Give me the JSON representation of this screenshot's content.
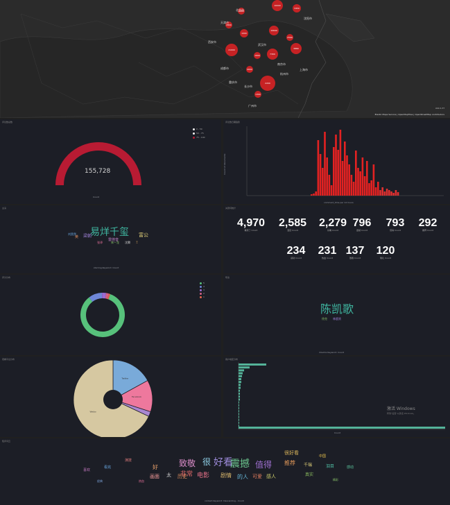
{
  "map": {
    "cities": [
      {
        "label": "10000"
      },
      {
        "label": "3450"
      },
      {
        "label": "2000"
      },
      {
        "label": "2800"
      },
      {
        "label": "1000"
      },
      {
        "label": "10690"
      },
      {
        "label": "21000"
      },
      {
        "label": "7300"
      },
      {
        "label": "2590"
      },
      {
        "label": "3880"
      },
      {
        "label": "1600"
      },
      {
        "label": "4000"
      },
      {
        "label": "2200"
      },
      {
        "label": "1300"
      }
    ],
    "place_labels": [
      "北京市",
      "天津市",
      "沈阳市",
      "西安市",
      "武汉市",
      "南京市",
      "上海市",
      "杭州市",
      "成都市",
      "重庆市",
      "长沙市",
      "广州市"
    ],
    "scale": "mm 1:??",
    "attribution": "Elastic Maps Service | OpenMapTiles | OpenStreetMap contributors"
  },
  "gauge": {
    "title": "评论数总数",
    "value": "155,728",
    "sub": "Count",
    "legend": [
      {
        "label": "0 - 50",
        "color": "#e9e9e9"
      },
      {
        "label": "50 - 75",
        "color": "#f2f2f2"
      },
      {
        "label": "75 - 100",
        "color": "#b81b33"
      }
    ]
  },
  "bars": {
    "title": "评论数日期趋势",
    "xlabel": "comment_time per 12 hours",
    "ylabel": "Count of documents"
  },
  "tagcloud1": {
    "title": "主演",
    "footer": "starring.Keyword: Count",
    "words": [
      {
        "text": "易烊千玺",
        "size": 14,
        "color": "#3fb6a0"
      },
      {
        "text": "雷佳音",
        "size": 5,
        "color": "#d08bd8"
      },
      {
        "text": "富公",
        "size": 7,
        "color": "#e6d47a"
      },
      {
        "text": "梁朝",
        "size": 6,
        "color": "#9f82d9"
      },
      {
        "text": "英",
        "size": 5,
        "color": "#e18f5e"
      },
      {
        "text": "刘昊然",
        "size": 4,
        "color": "#6aa9e4"
      },
      {
        "text": "张译",
        "size": 4,
        "color": "#e6709a"
      },
      {
        "text": "朱一龙",
        "size": 4,
        "color": "#88c068"
      },
      {
        "text": "沈腾",
        "size": 4,
        "color": "#c8c8c8"
      },
      {
        "text": "王",
        "size": 3,
        "color": "#d6a35a"
      }
    ]
  },
  "metrics": {
    "title": "关键词统计",
    "items": [
      {
        "value": "4,970",
        "label": "看哭了 Count"
      },
      {
        "value": "2,585",
        "label": "泪目 Count"
      },
      {
        "value": "2,279",
        "label": "好看 Count"
      },
      {
        "value": "796",
        "label": "震撼 Count"
      },
      {
        "value": "793",
        "label": "值得 Count"
      },
      {
        "value": "292",
        "label": "推荐 Count"
      },
      {
        "value": "234",
        "label": "感动 Count"
      },
      {
        "value": "231",
        "label": "热血 Count"
      },
      {
        "value": "137",
        "label": "致敬 Count"
      },
      {
        "value": "120",
        "label": "敬礼 Count"
      }
    ]
  },
  "donut": {
    "title": "评分分布",
    "legend": [
      {
        "label": "5",
        "color": "#57c17b"
      },
      {
        "label": "4",
        "color": "#6f87d8"
      },
      {
        "label": "3",
        "color": "#9c6bd1"
      },
      {
        "label": "2",
        "color": "#d36086"
      },
      {
        "label": "1",
        "color": "#e7664c"
      }
    ],
    "slices": [
      {
        "value": 84,
        "color": "#57c17b"
      },
      {
        "value": 10,
        "color": "#6f87d8"
      },
      {
        "value": 3,
        "color": "#9c6bd1"
      },
      {
        "value": 2,
        "color": "#d36086"
      },
      {
        "value": 1,
        "color": "#e7664c"
      }
    ]
  },
  "tagcloud2": {
    "title": "导演",
    "footer": "director.Keyword: Count",
    "main": "陈凯歌",
    "small": [
      "徐克",
      "林超贤"
    ]
  },
  "pie": {
    "title": "观看平台分布",
    "slices": [
      {
        "value": 17,
        "color": "#79aad9",
        "label": "Twitter"
      },
      {
        "value": 13,
        "color": "#ee789d",
        "label": "Facebook"
      },
      {
        "value": 2,
        "color": "#a987d1",
        "label": ""
      },
      {
        "value": 68,
        "color": "#d6c8a1",
        "label": "Weibo"
      }
    ]
  },
  "hbars": {
    "title": "用户地区分布",
    "xlabel": "Count",
    "ylabel": "location.Keyword: Descending",
    "watermark": "激活 Windows",
    "watermark_sub": "转到\"设置\"以激活 Windows。"
  },
  "tagcloud3": {
    "title": "短评词云",
    "footer": "content.Keyword: Descending - Count",
    "words": [
      {
        "text": "致敬",
        "size": 12,
        "color": "#d98cc8"
      },
      {
        "text": "很",
        "size": 12,
        "color": "#8fd0e8"
      },
      {
        "text": "好看",
        "size": 14,
        "color": "#9c8ad9"
      },
      {
        "text": "震撼",
        "size": 14,
        "color": "#6bc48d"
      },
      {
        "text": "值得",
        "size": 12,
        "color": "#9e6fd0"
      },
      {
        "text": "推荐",
        "size": 8,
        "color": "#e69b5a"
      },
      {
        "text": "千瑞",
        "size": 6,
        "color": "#e5d57a"
      },
      {
        "text": "电影",
        "size": 9,
        "color": "#e9738a"
      },
      {
        "text": "剧情",
        "size": 8,
        "color": "#d7b56b"
      },
      {
        "text": "的人",
        "size": 8,
        "color": "#66b8d8"
      },
      {
        "text": "可爱",
        "size": 7,
        "color": "#e57e5e"
      },
      {
        "text": "感人",
        "size": 7,
        "color": "#c9c96a"
      },
      {
        "text": "非常",
        "size": 9,
        "color": "#e46a6a"
      },
      {
        "text": "历史",
        "size": 7,
        "color": "#e18f5e"
      },
      {
        "text": "画面",
        "size": 7,
        "color": "#f49a9a"
      },
      {
        "text": "很好看",
        "size": 7,
        "color": "#d8b35a"
      },
      {
        "text": "真实",
        "size": 6,
        "color": "#8bbd5f"
      },
      {
        "text": "泪目",
        "size": 6,
        "color": "#4fc0a5"
      },
      {
        "text": "好",
        "size": 8,
        "color": "#e9a06b"
      },
      {
        "text": "太",
        "size": 7,
        "color": "#d0d0d0"
      },
      {
        "text": "看完",
        "size": 5,
        "color": "#6aa9e4"
      },
      {
        "text": "喜欢",
        "size": 5,
        "color": "#c879c4"
      },
      {
        "text": "演技",
        "size": 5,
        "color": "#e67f7f"
      },
      {
        "text": "中国",
        "size": 5,
        "color": "#e8c34d"
      },
      {
        "text": "感动",
        "size": 5,
        "color": "#59c19a"
      },
      {
        "text": "热血",
        "size": 4,
        "color": "#e6709a"
      },
      {
        "text": "精彩",
        "size": 4,
        "color": "#88c068"
      },
      {
        "text": "经典",
        "size": 4,
        "color": "#7ea7e0"
      }
    ]
  }
}
